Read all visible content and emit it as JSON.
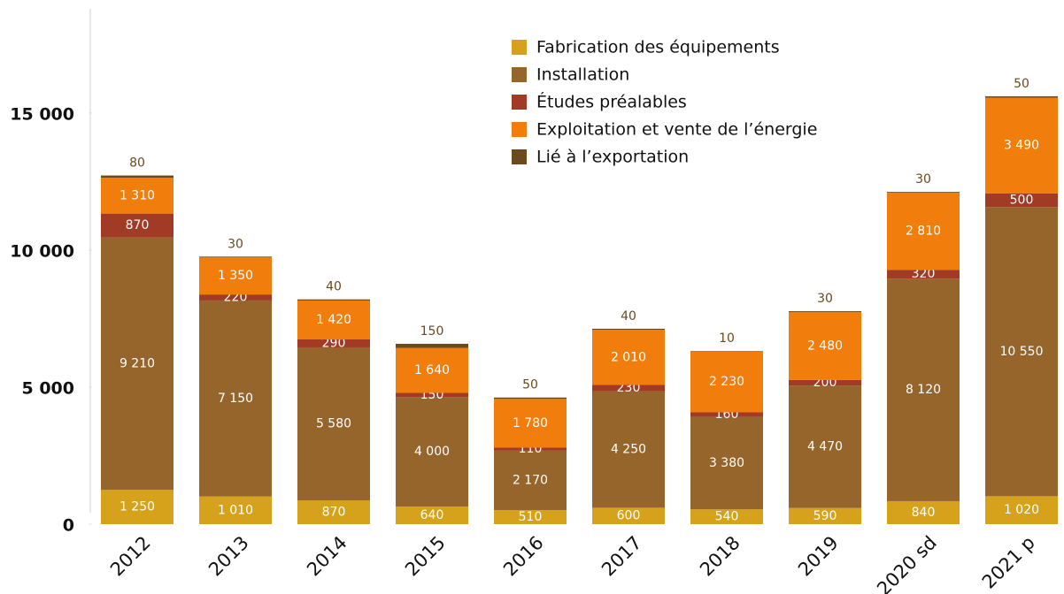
{
  "chart_data": {
    "type": "stacked_bar",
    "categories": [
      "2012",
      "2013",
      "2014",
      "2015",
      "2016",
      "2017",
      "2018",
      "2019",
      "2020 sd",
      "2021 p"
    ],
    "series": [
      {
        "name": "Fabrication des équipements",
        "color": "#d6a21b",
        "values": [
          1250,
          1010,
          870,
          640,
          510,
          600,
          540,
          590,
          840,
          1020
        ],
        "value_labels": [
          "1 250",
          "1 010",
          "870",
          "640",
          "510",
          "600",
          "540",
          "590",
          "840",
          "1 020"
        ]
      },
      {
        "name": "Installation",
        "color": "#96652b",
        "values": [
          9210,
          7150,
          5580,
          4000,
          2170,
          4250,
          3380,
          4470,
          8120,
          10550
        ],
        "value_labels": [
          "9 210",
          "7 150",
          "5 580",
          "4 000",
          "2 170",
          "4 250",
          "3 380",
          "4 470",
          "8 120",
          "10 550"
        ]
      },
      {
        "name": "Études préalables",
        "color": "#a23b26",
        "values": [
          870,
          220,
          290,
          150,
          110,
          230,
          160,
          200,
          320,
          500
        ],
        "value_labels": [
          "870",
          "220",
          "290",
          "150",
          "110",
          "230",
          "160",
          "200",
          "320",
          "500"
        ]
      },
      {
        "name": "Exploitation et vente de l’énergie",
        "color": "#f07d0c",
        "values": [
          1310,
          1350,
          1420,
          1640,
          1780,
          2010,
          2230,
          2480,
          2810,
          3490
        ],
        "value_labels": [
          "1 310",
          "1 350",
          "1 420",
          "1 640",
          "1 780",
          "2 010",
          "2 230",
          "2 480",
          "2 810",
          "3 490"
        ]
      },
      {
        "name": "Lié à l’exportation",
        "color": "#6b4a1d",
        "values": [
          80,
          30,
          40,
          150,
          50,
          40,
          10,
          30,
          30,
          50
        ],
        "value_labels": [
          "80",
          "30",
          "40",
          "150",
          "50",
          "40",
          "10",
          "30",
          "30",
          "50"
        ]
      }
    ],
    "ylim": [
      0,
      18800
    ],
    "yticks": [
      0,
      {
        "value": 5000,
        "label": "5 000"
      },
      {
        "value": 10000,
        "label": "10 000"
      },
      {
        "value": 15000,
        "label": "15 000"
      }
    ],
    "legend": "upper right"
  }
}
